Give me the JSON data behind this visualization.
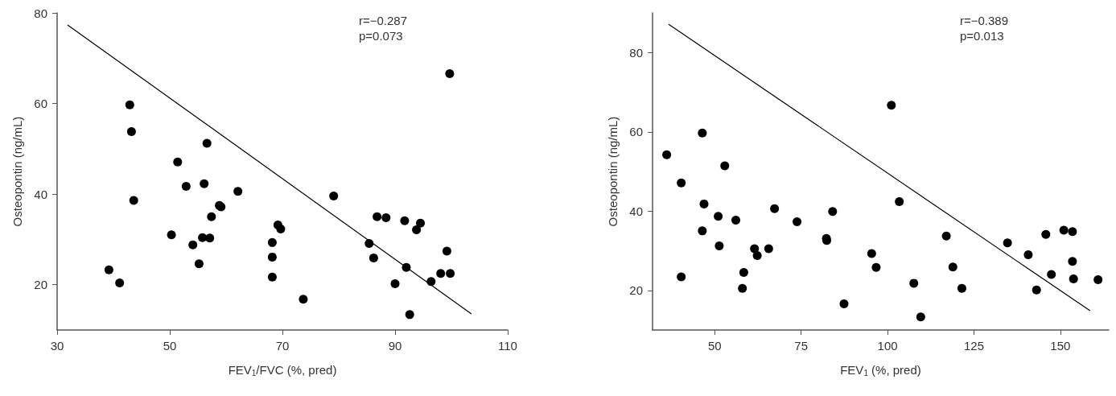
{
  "chart_data": [
    {
      "type": "scatter",
      "xlabel": "FEV$_{1}$/FVC (%, pred)",
      "ylabel": "Osteopontin (ng/mL)",
      "annotations": [
        "r=−0.287",
        "p=0.073"
      ],
      "xlim": [
        30,
        110
      ],
      "xticks": [
        30,
        50,
        70,
        90,
        110
      ],
      "ylim": [
        10,
        80
      ],
      "yticks": [
        20,
        40,
        60,
        80
      ],
      "grid": false,
      "marker": "circle",
      "series": [
        {
          "color": "#000000",
          "x": [
            42.9,
            43.2,
            43.6,
            39.2,
            41.1,
            51.4,
            52.9,
            50.3,
            54.1,
            55.2,
            56.1,
            56.6,
            55.8,
            57.1,
            57.4,
            58.8,
            59.1,
            62.1,
            69.2,
            69.7,
            68.2,
            68.2,
            68.2,
            99.7,
            79.1,
            73.7,
            86.8,
            88.4,
            91.7,
            94.5,
            93.8,
            85.4,
            86.2,
            92.0,
            90.0,
            92.6,
            96.4,
            98.1,
            99.8,
            99.2
          ],
          "values": [
            59.7,
            53.8,
            38.6,
            23.3,
            20.4,
            47.1,
            41.7,
            31.0,
            28.8,
            24.6,
            42.3,
            51.2,
            30.4,
            30.3,
            35.0,
            37.5,
            37.2,
            40.6,
            33.2,
            32.3,
            29.3,
            26.1,
            21.7,
            66.6,
            39.6,
            16.8,
            35.0,
            34.8,
            34.1,
            33.6,
            32.1,
            29.1,
            25.9,
            23.8,
            20.2,
            13.4,
            20.7,
            22.5,
            22.5,
            27.4
          ]
        },
        {
          "type": "line",
          "color": "#000000",
          "marker": "none",
          "line_style": "solid",
          "x": [
            31.9,
            103.5
          ],
          "values": [
            77.3,
            13.6
          ]
        }
      ]
    },
    {
      "type": "scatter",
      "xlabel": "FEV$_{1}$ (%, pred)",
      "ylabel": "Osteopontin (ng/mL)",
      "annotations": [
        "r=−0.389",
        "p=0.013"
      ],
      "xlim": [
        32,
        164
      ],
      "xticks": [
        50,
        75,
        100,
        125,
        150
      ],
      "ylim": [
        10,
        90
      ],
      "yticks": [
        20,
        40,
        60,
        80
      ],
      "grid": false,
      "marker": "circle",
      "series": [
        {
          "color": "#000000",
          "x": [
            36.1,
            40.3,
            40.3,
            46.4,
            46.9,
            46.4,
            51.0,
            51.3,
            52.9,
            56.1,
            61.5,
            62.3,
            65.6,
            58.4,
            58.0,
            67.3,
            73.8,
            82.3,
            82.4,
            84.1,
            87.4,
            101.1,
            103.4,
            95.4,
            96.7,
            107.6,
            109.6,
            117.0,
            118.9,
            121.5,
            134.7,
            140.7,
            145.8,
            147.4,
            143.1,
            151.0,
            153.5,
            153.5,
            153.8,
            160.9
          ],
          "values": [
            54.2,
            47.1,
            23.4,
            59.7,
            41.8,
            35.0,
            38.7,
            31.2,
            51.4,
            37.7,
            30.5,
            28.8,
            30.5,
            24.5,
            20.5,
            40.6,
            37.3,
            33.1,
            32.6,
            39.9,
            16.6,
            66.7,
            42.4,
            29.3,
            25.8,
            21.8,
            13.3,
            33.7,
            25.9,
            20.5,
            32.0,
            29.0,
            34.1,
            24.0,
            20.1,
            35.2,
            34.8,
            27.3,
            22.9,
            22.7
          ]
        },
        {
          "type": "line",
          "color": "#000000",
          "marker": "none",
          "line_style": "solid",
          "x": [
            36.7,
            158.5
          ],
          "values": [
            87.1,
            14.9
          ]
        }
      ]
    }
  ]
}
